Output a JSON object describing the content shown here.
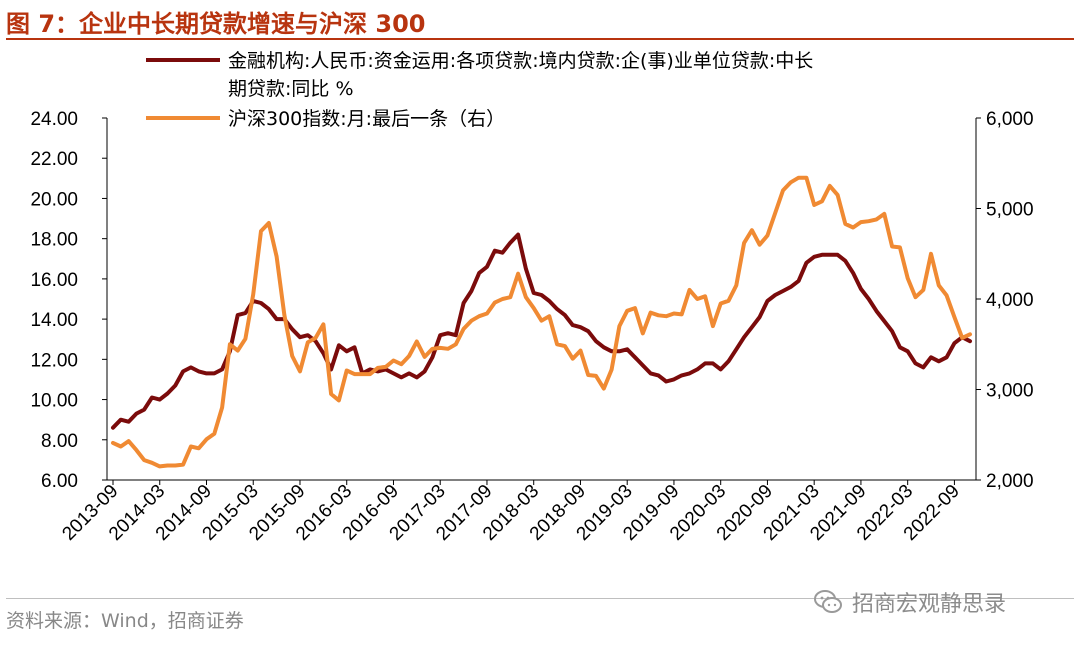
{
  "header": {
    "title": "图 7：企业中长期贷款增速与沪深 300"
  },
  "footer": {
    "source": "资料来源：Wind，招商证券",
    "watermark": "招商宏观静思录"
  },
  "colors": {
    "accent": "#b8340f",
    "loan_series": "#7b0b0b",
    "index_series": "#f08a33"
  },
  "icons": {
    "watermark": "wechat-icon"
  },
  "chart_data": {
    "type": "line",
    "title": "",
    "xlabel": "",
    "ylabel": "",
    "legend_position": "top",
    "grid": false,
    "x": [
      "2013-09",
      "2013-10",
      "2013-11",
      "2013-12",
      "2014-01",
      "2014-02",
      "2014-03",
      "2014-04",
      "2014-05",
      "2014-06",
      "2014-07",
      "2014-08",
      "2014-09",
      "2014-10",
      "2014-11",
      "2014-12",
      "2015-01",
      "2015-02",
      "2015-03",
      "2015-04",
      "2015-05",
      "2015-06",
      "2015-07",
      "2015-08",
      "2015-09",
      "2015-10",
      "2015-11",
      "2015-12",
      "2016-01",
      "2016-02",
      "2016-03",
      "2016-04",
      "2016-05",
      "2016-06",
      "2016-07",
      "2016-08",
      "2016-09",
      "2016-10",
      "2016-11",
      "2016-12",
      "2017-01",
      "2017-02",
      "2017-03",
      "2017-04",
      "2017-05",
      "2017-06",
      "2017-07",
      "2017-08",
      "2017-09",
      "2017-10",
      "2017-11",
      "2017-12",
      "2018-01",
      "2018-02",
      "2018-03",
      "2018-04",
      "2018-05",
      "2018-06",
      "2018-07",
      "2018-08",
      "2018-09",
      "2018-10",
      "2018-11",
      "2018-12",
      "2019-01",
      "2019-02",
      "2019-03",
      "2019-04",
      "2019-05",
      "2019-06",
      "2019-07",
      "2019-08",
      "2019-09",
      "2019-10",
      "2019-11",
      "2019-12",
      "2020-01",
      "2020-02",
      "2020-03",
      "2020-04",
      "2020-05",
      "2020-06",
      "2020-07",
      "2020-08",
      "2020-09",
      "2020-10",
      "2020-11",
      "2020-12",
      "2021-01",
      "2021-02",
      "2021-03",
      "2021-04",
      "2021-05",
      "2021-06",
      "2021-07",
      "2021-08",
      "2021-09",
      "2021-10",
      "2021-11",
      "2021-12",
      "2022-01",
      "2022-02",
      "2022-03",
      "2022-04",
      "2022-05",
      "2022-06",
      "2022-07",
      "2022-08",
      "2022-09",
      "2022-10",
      "2022-11"
    ],
    "x_tick_labels": [
      "2013-09",
      "2014-03",
      "2014-09",
      "2015-03",
      "2015-09",
      "2016-03",
      "2016-09",
      "2017-03",
      "2017-09",
      "2018-03",
      "2018-09",
      "2019-03",
      "2019-09",
      "2020-03",
      "2020-09",
      "2021-03",
      "2021-09",
      "2022-03",
      "2022-09"
    ],
    "y_left": {
      "ylim": [
        6,
        24
      ],
      "ticks": [
        "6.00",
        "8.00",
        "10.00",
        "12.00",
        "14.00",
        "16.00",
        "18.00",
        "20.00",
        "22.00",
        "24.00"
      ]
    },
    "y_right": {
      "ylim": [
        2000,
        6000
      ],
      "ticks": [
        "2,000",
        "3,000",
        "4,000",
        "5,000",
        "6,000"
      ]
    },
    "series": [
      {
        "name": "金融机构:人民币:资金运用:各项贷款:境内贷款:企(事)业单位贷款:中长期贷款:同比 %",
        "axis": "left",
        "values": [
          8.6,
          9.0,
          8.9,
          9.3,
          9.5,
          10.1,
          10.0,
          10.3,
          10.7,
          11.4,
          11.6,
          11.4,
          11.3,
          11.3,
          11.5,
          12.4,
          14.2,
          14.3,
          14.9,
          14.8,
          14.5,
          14.0,
          14.0,
          13.5,
          13.1,
          13.2,
          12.9,
          12.3,
          11.5,
          12.7,
          12.4,
          12.6,
          11.3,
          11.5,
          11.4,
          11.5,
          11.3,
          11.1,
          11.3,
          11.1,
          11.4,
          12.1,
          13.2,
          13.3,
          13.2,
          14.8,
          15.4,
          16.3,
          16.6,
          17.4,
          17.3,
          17.8,
          18.2,
          16.5,
          15.3,
          15.2,
          14.9,
          14.5,
          14.2,
          13.7,
          13.6,
          13.4,
          12.9,
          12.6,
          12.4,
          12.4,
          12.5,
          12.1,
          11.7,
          11.3,
          11.2,
          10.9,
          11.0,
          11.2,
          11.3,
          11.5,
          11.8,
          11.8,
          11.5,
          11.9,
          12.5,
          13.1,
          13.6,
          14.1,
          14.9,
          15.2,
          15.4,
          15.6,
          15.9,
          16.8,
          17.1,
          17.2,
          17.2,
          17.2,
          16.9,
          16.3,
          15.5,
          15.0,
          14.4,
          13.9,
          13.4,
          12.6,
          12.4,
          11.8,
          11.6,
          12.1,
          11.9,
          12.1,
          12.8,
          13.1,
          12.9
        ]
      },
      {
        "name": "沪深300指数:月:最后一条（右）",
        "axis": "right",
        "values": [
          2410,
          2370,
          2430,
          2330,
          2220,
          2190,
          2150,
          2160,
          2160,
          2170,
          2370,
          2350,
          2450,
          2510,
          2800,
          3500,
          3430,
          3560,
          4050,
          4750,
          4840,
          4470,
          3820,
          3370,
          3200,
          3520,
          3570,
          3720,
          2950,
          2880,
          3210,
          3170,
          3170,
          3170,
          3240,
          3250,
          3320,
          3280,
          3370,
          3530,
          3360,
          3450,
          3460,
          3450,
          3500,
          3670,
          3760,
          3810,
          3840,
          3960,
          4000,
          4020,
          4280,
          4020,
          3900,
          3760,
          3810,
          3500,
          3480,
          3340,
          3430,
          3160,
          3150,
          3010,
          3220,
          3700,
          3870,
          3900,
          3620,
          3850,
          3820,
          3810,
          3840,
          3830,
          4100,
          4000,
          4030,
          3700,
          3950,
          3980,
          4150,
          4620,
          4760,
          4600,
          4700,
          4950,
          5200,
          5290,
          5340,
          5340,
          5040,
          5080,
          5250,
          5150,
          4830,
          4790,
          4850,
          4860,
          4880,
          4940,
          4580,
          4570,
          4230,
          4020,
          4100,
          4500,
          4150,
          4040,
          3800,
          3570,
          3610
        ]
      }
    ]
  }
}
